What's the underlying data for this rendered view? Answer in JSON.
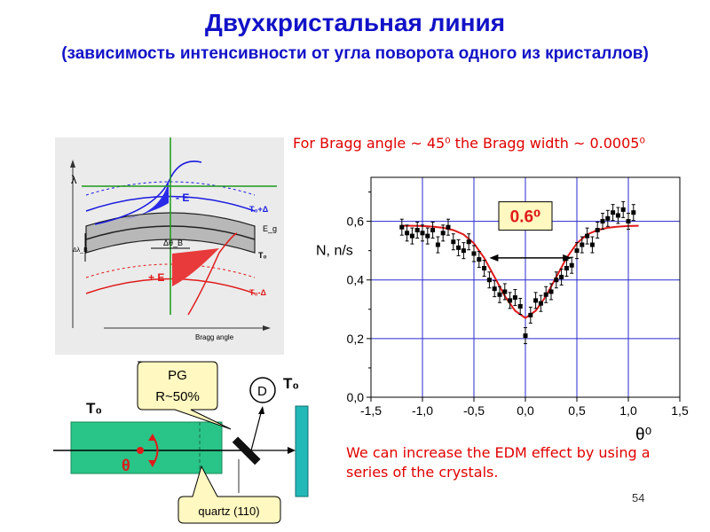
{
  "slide": {
    "title": "Двухкристальная линия",
    "subtitle": "(зависимость интенсивности от угла поворота одного из кристаллов)",
    "bragg_note": "For Bragg angle ~ 45⁰ the Bragg width ~ 0.0005⁰",
    "edm_note": "We can increase the EDM effect by using a series of the crystals.",
    "page_number": "54"
  },
  "band_diagram": {
    "lambda_label": "λ",
    "minus_e": "- E",
    "plus_e": "+ E",
    "t0_plus": "T₀+Δ",
    "t0_minus": "T₀-Δ",
    "t0": "T₀",
    "eg": "E_g",
    "delta_theta": "Δθ_B",
    "delta_lambda": "Δλ_B",
    "x_axis_label": "Bragg angle",
    "colors": {
      "upper": "#1a1ae0",
      "lower": "#e01a1a",
      "band": "#b8b8b8",
      "axis": "#1a9a1a"
    }
  },
  "setup": {
    "pg_label_1": "PG",
    "pg_label_2": "R~50%",
    "detector": "D",
    "t0_left": "T₀",
    "t0_right": "T₀",
    "theta": "θ",
    "quartz": "quartz (110)",
    "colors": {
      "crystal": "#29c487",
      "mirror": "#22b8b8"
    }
  },
  "chart_data": {
    "type": "scatter",
    "title": "",
    "xlabel": "θ⁰",
    "ylabel": "N, n/s",
    "xlim": [
      -1.5,
      1.5
    ],
    "ylim": [
      0.0,
      0.75
    ],
    "x_ticks": [
      "-1,5",
      "-1,0",
      "-0,5",
      "0,0",
      "0,5",
      "1,0",
      "1,5"
    ],
    "y_ticks": [
      "0,0",
      "0,2",
      "0,4",
      "0,6"
    ],
    "annotation": "0.6⁰",
    "series": [
      {
        "name": "data",
        "x": [
          -1.2,
          -1.15,
          -1.1,
          -1.05,
          -1.0,
          -0.95,
          -0.9,
          -0.85,
          -0.8,
          -0.75,
          -0.7,
          -0.65,
          -0.6,
          -0.55,
          -0.5,
          -0.45,
          -0.4,
          -0.35,
          -0.3,
          -0.25,
          -0.2,
          -0.15,
          -0.1,
          -0.05,
          0.0,
          0.05,
          0.1,
          0.15,
          0.2,
          0.25,
          0.3,
          0.35,
          0.4,
          0.45,
          0.5,
          0.55,
          0.6,
          0.65,
          0.7,
          0.75,
          0.8,
          0.85,
          0.9,
          0.95,
          1.0,
          1.05
        ],
        "y": [
          0.58,
          0.56,
          0.55,
          0.57,
          0.56,
          0.55,
          0.57,
          0.52,
          0.56,
          0.58,
          0.53,
          0.51,
          0.5,
          0.53,
          0.49,
          0.47,
          0.44,
          0.4,
          0.37,
          0.35,
          0.36,
          0.33,
          0.34,
          0.31,
          0.21,
          0.28,
          0.33,
          0.32,
          0.35,
          0.36,
          0.4,
          0.41,
          0.44,
          0.45,
          0.5,
          0.52,
          0.55,
          0.52,
          0.57,
          0.6,
          0.61,
          0.63,
          0.62,
          0.64,
          0.6,
          0.63
        ]
      },
      {
        "name": "fit",
        "x": [
          -1.2,
          -1.1,
          -1.0,
          -0.9,
          -0.8,
          -0.7,
          -0.6,
          -0.5,
          -0.4,
          -0.3,
          -0.2,
          -0.1,
          0.0,
          0.1,
          0.2,
          0.3,
          0.4,
          0.5,
          0.6,
          0.7,
          0.8,
          0.9,
          1.0,
          1.1
        ],
        "y": [
          0.585,
          0.585,
          0.584,
          0.582,
          0.578,
          0.57,
          0.555,
          0.525,
          0.475,
          0.41,
          0.345,
          0.295,
          0.27,
          0.295,
          0.345,
          0.41,
          0.475,
          0.525,
          0.555,
          0.57,
          0.578,
          0.582,
          0.584,
          0.585
        ]
      }
    ]
  }
}
